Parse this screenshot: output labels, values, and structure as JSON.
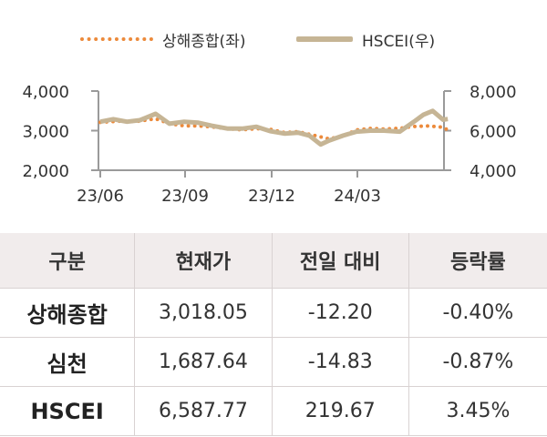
{
  "legend": {
    "left_series": "상해종합(좌)",
    "right_series": "HSCEI(우)"
  },
  "colors": {
    "shanghai": "#ec8a3b",
    "hscei": "#c6b595",
    "axis": "#9a9a9a",
    "header_bg": "#f1ecec"
  },
  "chart_data": {
    "type": "line",
    "x_ticks": [
      "23/06",
      "23/09",
      "23/12",
      "24/03"
    ],
    "y_left": {
      "ticks": [
        "4,000",
        "3,000",
        "2,000"
      ],
      "ylim": [
        2000,
        4000
      ]
    },
    "y_right": {
      "ticks": [
        "8,000",
        "6,000",
        "4,000"
      ],
      "ylim": [
        4000,
        8000
      ]
    },
    "x_range": [
      "2023-06-01",
      "2024-06-05"
    ],
    "series": [
      {
        "name": "상해종합(좌)",
        "axis": "left",
        "style": "dotted",
        "points": [
          [
            "2023-06-01",
            3210
          ],
          [
            "2023-06-20",
            3240
          ],
          [
            "2023-07-10",
            3230
          ],
          [
            "2023-07-31",
            3300
          ],
          [
            "2023-08-15",
            3180
          ],
          [
            "2023-08-31",
            3120
          ],
          [
            "2023-09-15",
            3120
          ],
          [
            "2023-09-28",
            3100
          ],
          [
            "2023-10-16",
            3050
          ],
          [
            "2023-10-31",
            3020
          ],
          [
            "2023-11-15",
            3050
          ],
          [
            "2023-11-30",
            3030
          ],
          [
            "2023-12-15",
            2950
          ],
          [
            "2023-12-29",
            2975
          ],
          [
            "2024-01-15",
            2880
          ],
          [
            "2024-01-31",
            2790
          ],
          [
            "2024-02-15",
            2870
          ],
          [
            "2024-02-29",
            3015
          ],
          [
            "2024-03-15",
            3055
          ],
          [
            "2024-03-29",
            3040
          ],
          [
            "2024-04-15",
            3060
          ],
          [
            "2024-04-30",
            3105
          ],
          [
            "2024-05-15",
            3120
          ],
          [
            "2024-05-31",
            3086
          ],
          [
            "2024-06-05",
            3018
          ]
        ]
      },
      {
        "name": "HSCEI(우)",
        "axis": "right",
        "style": "solid",
        "points": [
          [
            "2023-06-01",
            6450
          ],
          [
            "2023-06-15",
            6580
          ],
          [
            "2023-06-30",
            6450
          ],
          [
            "2023-07-14",
            6530
          ],
          [
            "2023-07-31",
            6850
          ],
          [
            "2023-08-15",
            6350
          ],
          [
            "2023-08-31",
            6450
          ],
          [
            "2023-09-15",
            6400
          ],
          [
            "2023-09-29",
            6250
          ],
          [
            "2023-10-16",
            6100
          ],
          [
            "2023-10-31",
            6100
          ],
          [
            "2023-11-15",
            6200
          ],
          [
            "2023-11-30",
            5970
          ],
          [
            "2023-12-15",
            5850
          ],
          [
            "2023-12-29",
            5900
          ],
          [
            "2024-01-10",
            5750
          ],
          [
            "2024-01-22",
            5300
          ],
          [
            "2024-01-31",
            5500
          ],
          [
            "2024-02-15",
            5750
          ],
          [
            "2024-02-29",
            5950
          ],
          [
            "2024-03-15",
            6000
          ],
          [
            "2024-03-29",
            6000
          ],
          [
            "2024-04-15",
            5950
          ],
          [
            "2024-04-30",
            6450
          ],
          [
            "2024-05-10",
            6800
          ],
          [
            "2024-05-20",
            7000
          ],
          [
            "2024-05-31",
            6550
          ],
          [
            "2024-06-05",
            6588
          ]
        ]
      }
    ],
    "grid": false
  },
  "table": {
    "headers": [
      "구분",
      "현재가",
      "전일 대비",
      "등락률"
    ],
    "rows": [
      [
        "상해종합",
        "3,018.05",
        "-12.20",
        "-0.40%"
      ],
      [
        "심천",
        "1,687.64",
        "-14.83",
        "-0.87%"
      ],
      [
        "HSCEI",
        "6,587.77",
        "219.67",
        "3.45%"
      ]
    ]
  }
}
